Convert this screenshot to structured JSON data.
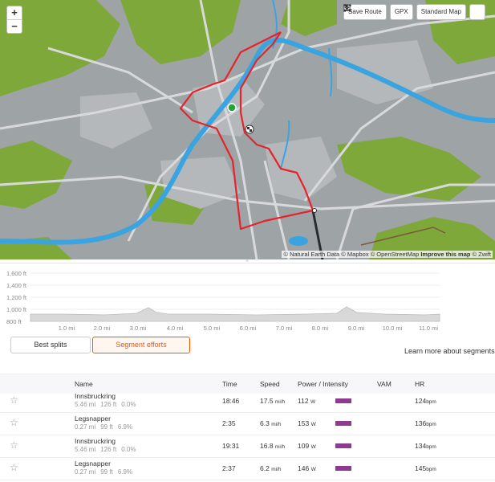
{
  "map": {
    "zoom_in": "+",
    "zoom_out": "−",
    "save_route_label": "Save Route",
    "gpx_label": "GPX",
    "map_style_label": "Standard Map",
    "attribution": {
      "natural_earth": "© Natural Earth Data",
      "mapbox": "© Mapbox",
      "osm": "© OpenStreetMap",
      "improve": "Improve this map",
      "zwift": "© Zwift"
    }
  },
  "elevation": {
    "y_ticks": [
      "1,600 ft",
      "1,400 ft",
      "1,200 ft",
      "1,000 ft",
      "800 ft"
    ],
    "x_ticks": [
      "1.0 mi",
      "2.0 mi",
      "3.0 mi",
      "4.0 mi",
      "5.0 mi",
      "6.0 mi",
      "7.0 mi",
      "8.0 mi",
      "9.0 mi",
      "10.0 mi",
      "11.0 mi"
    ]
  },
  "tabs": {
    "best_splits": "Best splits",
    "segment_efforts": "Segment efforts",
    "learn_more": "Learn more about segments"
  },
  "table": {
    "headers": {
      "name": "Name",
      "time": "Time",
      "speed": "Speed",
      "power": "Power / Intensity",
      "vam": "VAM",
      "hr": "HR"
    },
    "rows": [
      {
        "name": "Innsbruckring",
        "dist": "5.46 mi",
        "elev": "126 ft",
        "grade": "0.0%",
        "time": "18:46",
        "speed": "17.5",
        "speed_unit": "mi/h",
        "power": "112",
        "power_unit": "W",
        "intensity": 1.0,
        "hr": "124",
        "hr_unit": "bpm"
      },
      {
        "name": "Legsnapper",
        "dist": "0.27 mi",
        "elev": "99 ft",
        "grade": "6.9%",
        "time": "2:35",
        "speed": "6.3",
        "speed_unit": "mi/h",
        "power": "153",
        "power_unit": "W",
        "intensity": 1.0,
        "hr": "136",
        "hr_unit": "bpm"
      },
      {
        "name": "Innsbruckring",
        "dist": "5.46 mi",
        "elev": "126 ft",
        "grade": "0.0%",
        "time": "19:31",
        "speed": "16.8",
        "speed_unit": "mi/h",
        "power": "109",
        "power_unit": "W",
        "intensity": 1.0,
        "hr": "134",
        "hr_unit": "bpm"
      },
      {
        "name": "Legsnapper",
        "dist": "0.27 mi",
        "elev": "99 ft",
        "grade": "6.9%",
        "time": "2:37",
        "speed": "6.2",
        "speed_unit": "mi/h",
        "power": "146",
        "power_unit": "W",
        "intensity": 1.0,
        "hr": "145",
        "hr_unit": "bpm"
      }
    ]
  },
  "colors": {
    "route": "#e8222a",
    "river": "#3aa4e0",
    "accent": "#fc5200",
    "power_bar": "#8e3a8f"
  }
}
